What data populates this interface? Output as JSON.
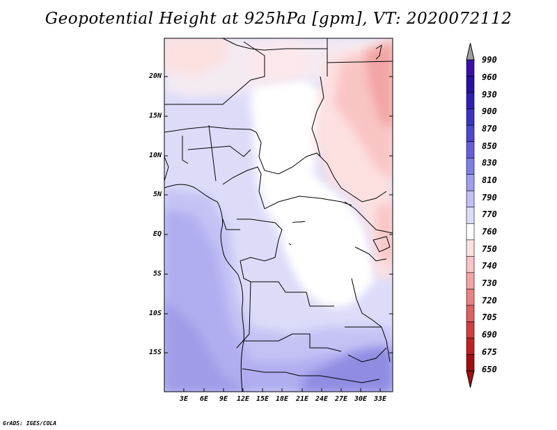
{
  "title": "Geopotential Height at 925hPa [gpm], VT: 2020072112",
  "footer": "GrADS: IGES/COLA",
  "lat_labels": [
    "20N",
    "15N",
    "10N",
    "5N",
    "EQ",
    "5S",
    "10S",
    "15S"
  ],
  "lon_labels": [
    "3E",
    "6E",
    "9E",
    "12E",
    "15E",
    "18E",
    "21E",
    "24E",
    "27E",
    "30E",
    "33E"
  ],
  "colorbar": {
    "levels": [
      "990",
      "960",
      "930",
      "900",
      "870",
      "850",
      "830",
      "810",
      "790",
      "770",
      "760",
      "750",
      "740",
      "730",
      "720",
      "705",
      "690",
      "675",
      "650"
    ],
    "colors": [
      "#3a0fa8",
      "#2810a0",
      "#2d1fb0",
      "#3a33c2",
      "#4c47cc",
      "#6460d8",
      "#7f7ee2",
      "#a09fee",
      "#c0c0f4",
      "#dcdcf9",
      "#ffffff",
      "#fde0e0",
      "#f9c4c4",
      "#f2a4a4",
      "#ea8282",
      "#de6060",
      "#cf3f3f",
      "#bc2222",
      "#a01010"
    ]
  }
}
